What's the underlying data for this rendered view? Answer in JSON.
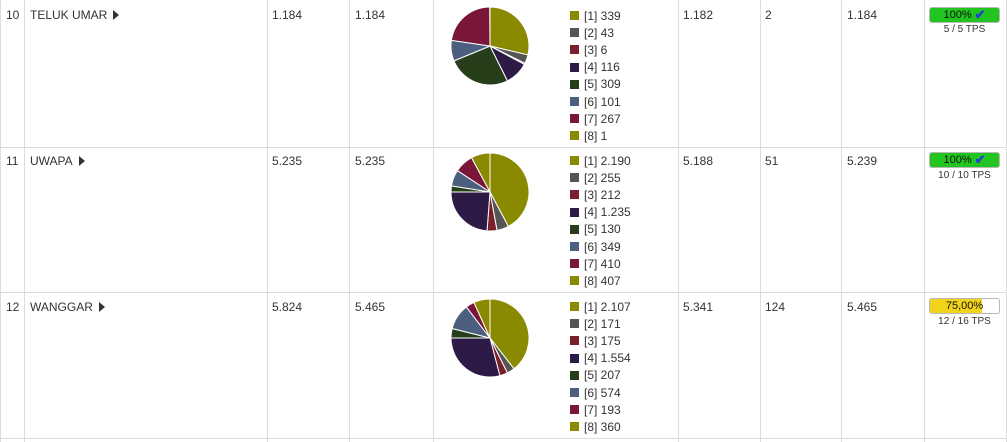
{
  "colors": [
    "#8a8a00",
    "#555555",
    "#7a1f2b",
    "#2e1a47",
    "#263f1a",
    "#4d5f7f",
    "#7a1639",
    "#8a8a00"
  ],
  "rows": [
    {
      "no": "10",
      "name": "TELUK UMAR",
      "c1": "1.184",
      "c2": "1.184",
      "legend": [
        "[1] 339",
        "[2] 43",
        "[3] 6",
        "[4] 116",
        "[5] 309",
        "[6] 101",
        "[7] 267",
        "[8] 1"
      ],
      "values": [
        339,
        43,
        6,
        116,
        309,
        101,
        267,
        1
      ],
      "c3": "1.182",
      "c4": "2",
      "c5": "1.184",
      "progress_label": "100%",
      "progress_value": 100,
      "progress_color": "#22c41f",
      "complete": true,
      "tps": "5 / 5 TPS"
    },
    {
      "no": "11",
      "name": "UWAPA",
      "c1": "5.235",
      "c2": "5.235",
      "legend": [
        "[1] 2.190",
        "[2] 255",
        "[3] 212",
        "[4] 1.235",
        "[5] 130",
        "[6] 349",
        "[7] 410",
        "[8] 407"
      ],
      "values": [
        2190,
        255,
        212,
        1235,
        130,
        349,
        410,
        407
      ],
      "c3": "5.188",
      "c4": "51",
      "c5": "5.239",
      "progress_label": "100%",
      "progress_value": 100,
      "progress_color": "#22c41f",
      "complete": true,
      "tps": "10 / 10 TPS"
    },
    {
      "no": "12",
      "name": "WANGGAR",
      "c1": "5.824",
      "c2": "5.465",
      "legend": [
        "[1] 2.107",
        "[2] 171",
        "[3] 175",
        "[4] 1.554",
        "[5] 207",
        "[6] 574",
        "[7] 193",
        "[8] 360"
      ],
      "values": [
        2107,
        171,
        175,
        1554,
        207,
        574,
        193,
        360
      ],
      "c3": "5.341",
      "c4": "124",
      "c5": "5.465",
      "progress_label": "75,00%",
      "progress_value": 75,
      "progress_color": "#f2d31b",
      "complete": false,
      "tps": "12 / 16 TPS"
    }
  ]
}
